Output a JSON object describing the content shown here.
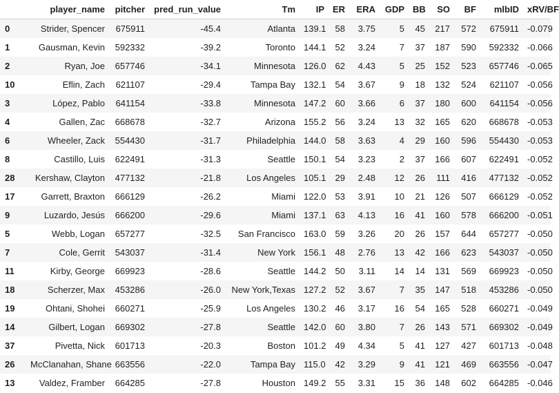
{
  "columns": [
    "",
    "player_name",
    "pitcher",
    "pred_run_value",
    "Tm",
    "IP",
    "ER",
    "ERA",
    "GDP",
    "BB",
    "SO",
    "BF",
    "mlbID",
    "xRV/BF"
  ],
  "rows": [
    [
      "0",
      "Strider, Spencer",
      "675911",
      "-45.4",
      "Atlanta",
      "139.1",
      "58",
      "3.75",
      "5",
      "45",
      "217",
      "572",
      "675911",
      "-0.079"
    ],
    [
      "1",
      "Gausman, Kevin",
      "592332",
      "-39.2",
      "Toronto",
      "144.1",
      "52",
      "3.24",
      "7",
      "37",
      "187",
      "590",
      "592332",
      "-0.066"
    ],
    [
      "2",
      "Ryan, Joe",
      "657746",
      "-34.1",
      "Minnesota",
      "126.0",
      "62",
      "4.43",
      "5",
      "25",
      "152",
      "523",
      "657746",
      "-0.065"
    ],
    [
      "10",
      "Eflin, Zach",
      "621107",
      "-29.4",
      "Tampa Bay",
      "132.1",
      "54",
      "3.67",
      "9",
      "18",
      "132",
      "524",
      "621107",
      "-0.056"
    ],
    [
      "3",
      "López, Pablo",
      "641154",
      "-33.8",
      "Minnesota",
      "147.2",
      "60",
      "3.66",
      "6",
      "37",
      "180",
      "600",
      "641154",
      "-0.056"
    ],
    [
      "4",
      "Gallen, Zac",
      "668678",
      "-32.7",
      "Arizona",
      "155.2",
      "56",
      "3.24",
      "13",
      "32",
      "165",
      "620",
      "668678",
      "-0.053"
    ],
    [
      "6",
      "Wheeler, Zack",
      "554430",
      "-31.7",
      "Philadelphia",
      "144.0",
      "58",
      "3.63",
      "4",
      "29",
      "160",
      "596",
      "554430",
      "-0.053"
    ],
    [
      "8",
      "Castillo, Luis",
      "622491",
      "-31.3",
      "Seattle",
      "150.1",
      "54",
      "3.23",
      "2",
      "37",
      "166",
      "607",
      "622491",
      "-0.052"
    ],
    [
      "28",
      "Kershaw, Clayton",
      "477132",
      "-21.8",
      "Los Angeles",
      "105.1",
      "29",
      "2.48",
      "12",
      "26",
      "111",
      "416",
      "477132",
      "-0.052"
    ],
    [
      "17",
      "Garrett, Braxton",
      "666129",
      "-26.2",
      "Miami",
      "122.0",
      "53",
      "3.91",
      "10",
      "21",
      "126",
      "507",
      "666129",
      "-0.052"
    ],
    [
      "9",
      "Luzardo, Jesús",
      "666200",
      "-29.6",
      "Miami",
      "137.1",
      "63",
      "4.13",
      "16",
      "41",
      "160",
      "578",
      "666200",
      "-0.051"
    ],
    [
      "5",
      "Webb, Logan",
      "657277",
      "-32.5",
      "San Francisco",
      "163.0",
      "59",
      "3.26",
      "20",
      "26",
      "157",
      "644",
      "657277",
      "-0.050"
    ],
    [
      "7",
      "Cole, Gerrit",
      "543037",
      "-31.4",
      "New York",
      "156.1",
      "48",
      "2.76",
      "13",
      "42",
      "166",
      "623",
      "543037",
      "-0.050"
    ],
    [
      "11",
      "Kirby, George",
      "669923",
      "-28.6",
      "Seattle",
      "144.2",
      "50",
      "3.11",
      "14",
      "14",
      "131",
      "569",
      "669923",
      "-0.050"
    ],
    [
      "18",
      "Scherzer, Max",
      "453286",
      "-26.0",
      "New York,Texas",
      "127.2",
      "52",
      "3.67",
      "7",
      "35",
      "147",
      "518",
      "453286",
      "-0.050"
    ],
    [
      "19",
      "Ohtani, Shohei",
      "660271",
      "-25.9",
      "Los Angeles",
      "130.2",
      "46",
      "3.17",
      "16",
      "54",
      "165",
      "528",
      "660271",
      "-0.049"
    ],
    [
      "14",
      "Gilbert, Logan",
      "669302",
      "-27.8",
      "Seattle",
      "142.0",
      "60",
      "3.80",
      "7",
      "26",
      "143",
      "571",
      "669302",
      "-0.049"
    ],
    [
      "37",
      "Pivetta, Nick",
      "601713",
      "-20.3",
      "Boston",
      "101.2",
      "49",
      "4.34",
      "5",
      "41",
      "127",
      "427",
      "601713",
      "-0.048"
    ],
    [
      "26",
      "McClanahan, Shane",
      "663556",
      "-22.0",
      "Tampa Bay",
      "115.0",
      "42",
      "3.29",
      "9",
      "41",
      "121",
      "469",
      "663556",
      "-0.047"
    ],
    [
      "13",
      "Valdez, Framber",
      "664285",
      "-27.8",
      "Houston",
      "149.2",
      "55",
      "3.31",
      "15",
      "36",
      "148",
      "602",
      "664285",
      "-0.046"
    ]
  ]
}
